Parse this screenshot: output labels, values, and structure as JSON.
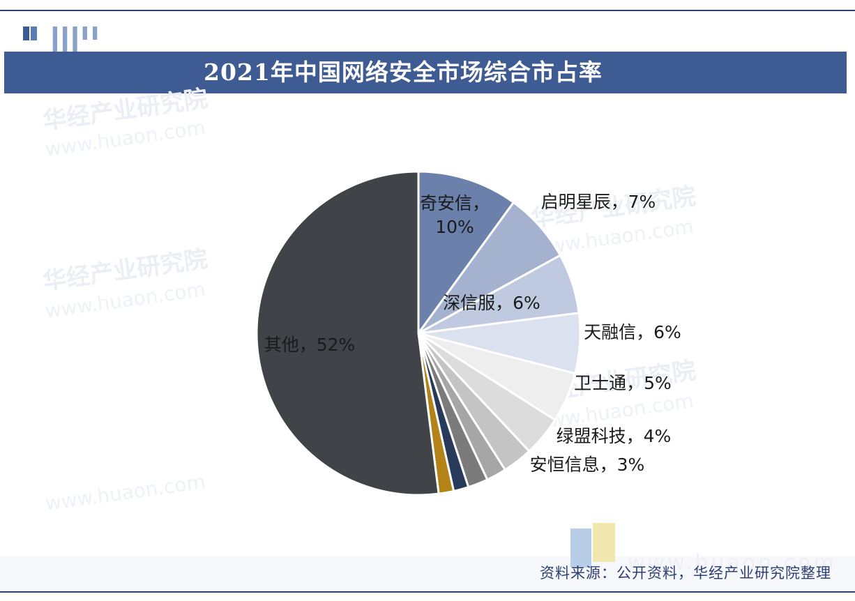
{
  "page": {
    "title": "2021年中国网络安全市场综合市占率",
    "logo_text": "▌▌▌▌▌ ▌▌▌",
    "watermark": "华经产业研究院",
    "watermark_url": "www.huaon.com",
    "source": "资料来源：公开资料，华经产业研究院整理",
    "source_url": "www.huaon.com"
  },
  "chart_data": {
    "type": "pie",
    "title": "2021年中国网络安全市场综合市占率",
    "unit": "%",
    "start_angle": "12 o'clock",
    "direction": "clockwise",
    "slices": [
      {
        "label": "奇安信",
        "value": 10,
        "display": "奇安信，10%",
        "color": "#6b80ab"
      },
      {
        "label": "启明星辰",
        "value": 7,
        "display": "启明星辰，7%",
        "color": "#a4b2cf"
      },
      {
        "label": "深信服",
        "value": 6,
        "display": "深信服，6%",
        "color": "#bfcae0"
      },
      {
        "label": "天融信",
        "value": 6,
        "display": "天融信，6%",
        "color": "#dbe1ee"
      },
      {
        "label": "卫士通",
        "value": 5,
        "display": "卫士通，5%",
        "color": "#eeeeee"
      },
      {
        "label": "绿盟科技",
        "value": 4,
        "display": "绿盟科技，4%",
        "color": "#dcdcdc"
      },
      {
        "label": "安恒信息",
        "value": 3,
        "display": "安恒信息，3%",
        "color": "#c4c4c4"
      },
      {
        "label": "",
        "value": 2,
        "display": "",
        "color": "#a6a6a6"
      },
      {
        "label": "",
        "value": 2,
        "display": "",
        "color": "#7b7b7b"
      },
      {
        "label": "",
        "value": 1.5,
        "display": "",
        "color": "#283a59"
      },
      {
        "label": "",
        "value": 1.5,
        "display": "",
        "color": "#b38318"
      },
      {
        "label": "其他",
        "value": 52,
        "display": "其他，52%",
        "color": "#404347"
      }
    ]
  }
}
